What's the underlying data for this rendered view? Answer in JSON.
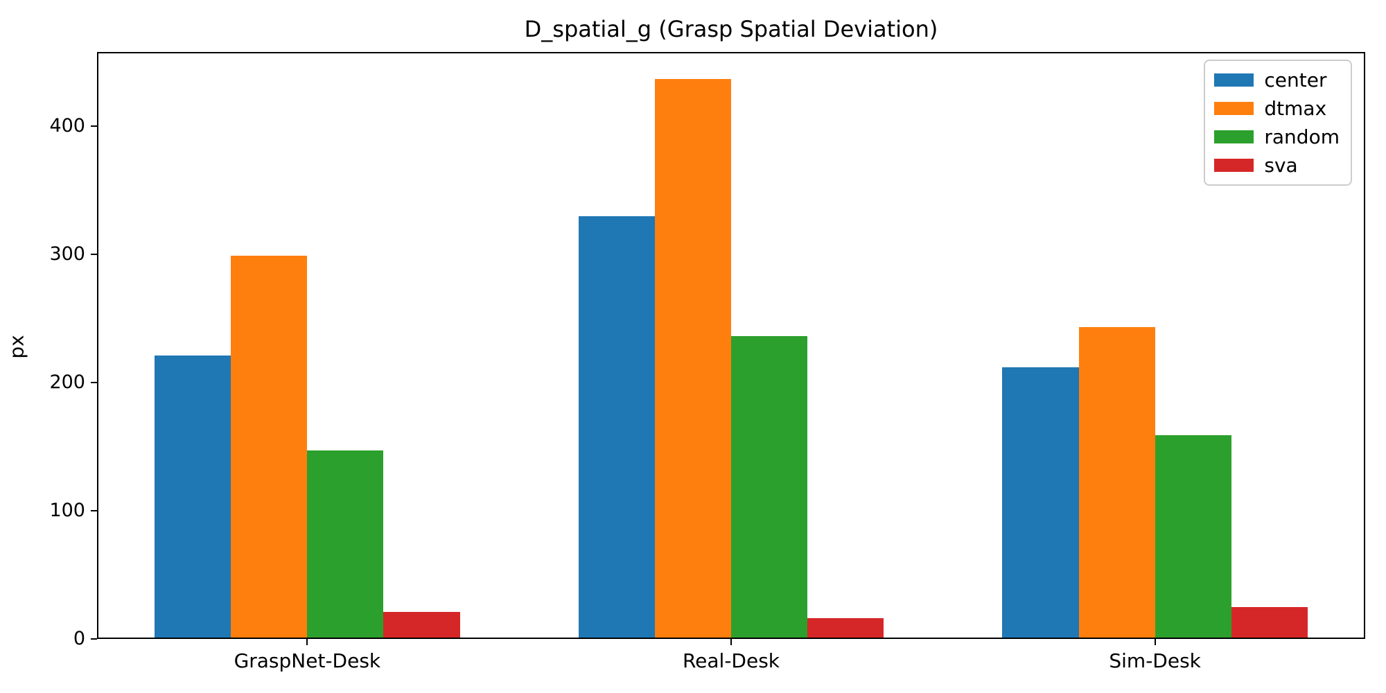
{
  "chart_data": {
    "type": "bar",
    "title": "D_spatial_g (Grasp Spatial Deviation)",
    "xlabel": "",
    "ylabel": "px",
    "categories": [
      "GraspNet-Desk",
      "Real-Desk",
      "Sim-Desk"
    ],
    "series": [
      {
        "name": "center",
        "color": "#1f77b4",
        "values": [
          220,
          329,
          211
        ]
      },
      {
        "name": "dtmax",
        "color": "#ff7f0e",
        "values": [
          298,
          436,
          242
        ]
      },
      {
        "name": "random",
        "color": "#2ca02c",
        "values": [
          146,
          235,
          158
        ]
      },
      {
        "name": "sva",
        "color": "#d62728",
        "values": [
          20,
          15,
          24
        ]
      }
    ],
    "yticks": [
      0,
      100,
      200,
      300,
      400
    ],
    "ylim": [
      0,
      458
    ],
    "bar_width": 0.18,
    "grid": false,
    "legend_position": "upper right",
    "axis_color": "#000000",
    "background_color": "#ffffff"
  }
}
